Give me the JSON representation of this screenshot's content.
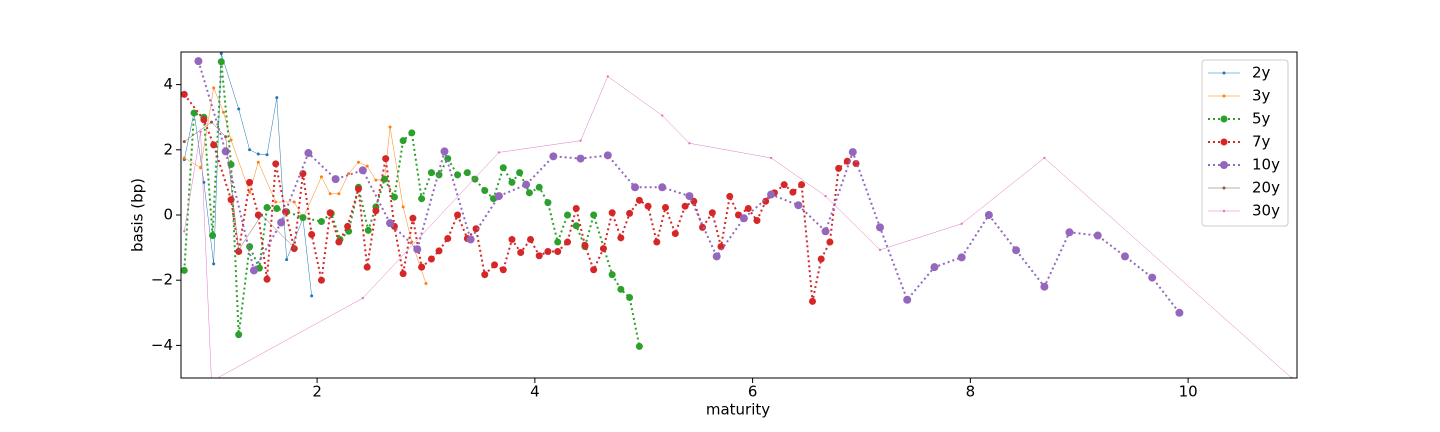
{
  "chart_data": {
    "type": "line",
    "x_label": "maturity",
    "y_label": "basis (bp)",
    "xlim": [
      0.75,
      11.0
    ],
    "ylim": [
      -5,
      5
    ],
    "xticks": [
      2,
      4,
      6,
      8,
      10
    ],
    "yticks": [
      {
        "value": -4,
        "label": "−4"
      },
      {
        "value": -2,
        "label": "−2"
      },
      0,
      2,
      4
    ],
    "legend": "upper right",
    "series": [
      {
        "name": "2y",
        "color": "#1f77b4",
        "linestyle": "solid",
        "linewidth": 0.5,
        "marker_size": 1.5,
        "x": [
          0.78,
          0.87,
          0.96,
          1.05,
          1.12,
          1.28,
          1.38,
          1.46,
          1.54,
          1.63,
          1.72,
          1.87,
          1.95
        ],
        "values": [
          1.7,
          3.15,
          1.0,
          -1.5,
          4.95,
          3.25,
          2.0,
          1.87,
          1.85,
          3.6,
          -1.37,
          -0.1,
          -2.48
        ]
      },
      {
        "name": "3y",
        "color": "#ff7f0e",
        "linestyle": "solid",
        "linewidth": 0.5,
        "marker_size": 1.5,
        "x": [
          0.78,
          0.93,
          1.05,
          1.14,
          1.21,
          1.38,
          1.46,
          1.62,
          1.79,
          1.87,
          2.04,
          2.12,
          2.2,
          2.29,
          2.38,
          2.46,
          2.54,
          2.62,
          2.67,
          2.79,
          2.87,
          3.0
        ],
        "values": [
          1.75,
          1.45,
          3.9,
          3.15,
          2.3,
          0.7,
          1.62,
          0.4,
          0.4,
          -0.1,
          1.17,
          0.65,
          0.65,
          1.27,
          1.62,
          1.5,
          1.07,
          1.1,
          2.7,
          0.25,
          -0.83,
          -2.1
        ]
      },
      {
        "name": "5y",
        "color": "#2ca02c",
        "linestyle": "dotted",
        "linewidth": 2,
        "marker_size": 3.5,
        "x": [
          0.78,
          0.87,
          0.96,
          1.04,
          1.12,
          1.21,
          1.28,
          1.38,
          1.47,
          1.54,
          1.63,
          1.72,
          1.87,
          2.04,
          2.13,
          2.21,
          2.29,
          2.38,
          2.47,
          2.54,
          2.62,
          2.71,
          2.79,
          2.87,
          2.96,
          3.05,
          3.12,
          3.2,
          3.29,
          3.38,
          3.45,
          3.54,
          3.62,
          3.71,
          3.79,
          3.86,
          3.95,
          4.04,
          4.12,
          4.21,
          4.3,
          4.38,
          4.46,
          4.54,
          4.71,
          4.79,
          4.87,
          4.96
        ],
        "values": [
          -1.7,
          3.13,
          3.0,
          -0.63,
          4.7,
          1.55,
          -3.67,
          -0.97,
          -1.63,
          0.23,
          0.2,
          0.1,
          -0.08,
          -0.2,
          0.05,
          -0.75,
          -0.5,
          0.85,
          -0.47,
          0.25,
          1.1,
          0.55,
          2.28,
          2.52,
          0.5,
          1.3,
          1.23,
          1.73,
          1.23,
          1.3,
          1.1,
          0.75,
          0.5,
          1.45,
          1.0,
          1.3,
          0.68,
          0.85,
          0.38,
          -0.83,
          0,
          -0.33,
          -0.97,
          0,
          -1.83,
          -2.28,
          -2.53,
          -4.03
        ]
      },
      {
        "name": "7y",
        "color": "#d62728",
        "linestyle": "dotted",
        "linewidth": 2,
        "marker_size": 3.5,
        "x": [
          0.78,
          0.96,
          1.05,
          1.21,
          1.28,
          1.38,
          1.46,
          1.54,
          1.62,
          1.71,
          1.79,
          1.87,
          1.95,
          2.04,
          2.12,
          2.2,
          2.28,
          2.38,
          2.46,
          2.54,
          2.63,
          2.71,
          2.79,
          2.88,
          2.96,
          3.05,
          3.12,
          3.2,
          3.29,
          3.38,
          3.46,
          3.54,
          3.63,
          3.71,
          3.79,
          3.87,
          3.96,
          4.04,
          4.12,
          4.21,
          4.3,
          4.38,
          4.46,
          4.54,
          4.63,
          4.71,
          4.79,
          4.87,
          4.96,
          5.04,
          5.12,
          5.2,
          5.29,
          5.38,
          5.46,
          5.54,
          5.63,
          5.71,
          5.79,
          5.87,
          5.96,
          6.04,
          6.12,
          6.2,
          6.29,
          6.37,
          6.45,
          6.55,
          6.63,
          6.71,
          6.79,
          6.87,
          6.95
        ],
        "values": [
          3.7,
          2.92,
          2.15,
          0.47,
          -1.12,
          1.0,
          0,
          -1.97,
          1.57,
          0.1,
          -1.03,
          1.27,
          -0.6,
          -2.0,
          0.07,
          -0.83,
          -0.35,
          0.8,
          -1.6,
          0.13,
          1.73,
          -0.35,
          -1.8,
          -0.1,
          -1.6,
          -1.35,
          -1.1,
          -0.72,
          0,
          -0.72,
          -0.42,
          -1.83,
          -1.53,
          -1.68,
          -0.75,
          -1.15,
          -0.75,
          -1.25,
          -1.12,
          -1.12,
          -0.83,
          0.2,
          -0.93,
          -1.68,
          -1.03,
          0.07,
          -0.7,
          0.05,
          0.45,
          0.27,
          -0.83,
          0.23,
          -0.57,
          0.27,
          0.42,
          -0.38,
          0.07,
          -0.97,
          0.57,
          0,
          0.2,
          -0.17,
          0.42,
          0.68,
          0.93,
          0.7,
          0.93,
          -2.65,
          -1.35,
          -0.83,
          1.43,
          1.65,
          1.58
        ]
      },
      {
        "name": "10y",
        "color": "#9467bd",
        "linestyle": "dotted",
        "linewidth": 2,
        "marker_size": 4,
        "x": [
          0.91,
          1.16,
          1.42,
          1.67,
          1.92,
          2.17,
          2.42,
          2.67,
          2.92,
          3.17,
          3.41,
          3.67,
          3.92,
          4.17,
          4.42,
          4.67,
          4.92,
          5.17,
          5.42,
          5.67,
          5.92,
          6.17,
          6.42,
          6.67,
          6.92,
          7.17,
          7.42,
          7.67,
          7.92,
          8.17,
          8.42,
          8.68,
          8.91,
          9.17,
          9.42,
          9.67,
          9.92
        ],
        "values": [
          4.72,
          1.95,
          -1.7,
          -0.23,
          1.9,
          1.1,
          1.37,
          -0.25,
          -1.05,
          1.95,
          -0.75,
          0.58,
          0.93,
          1.8,
          1.73,
          1.83,
          0.85,
          0.85,
          0.58,
          -1.27,
          -0.1,
          0.63,
          0.3,
          -0.5,
          1.93,
          -0.38,
          -2.6,
          -1.6,
          -1.3,
          0,
          -1.08,
          -2.2,
          -0.53,
          -0.63,
          -1.27,
          -1.92,
          -3.0
        ]
      },
      {
        "name": "20y",
        "color": "#8c564b",
        "linestyle": "solid",
        "linewidth": 0.5,
        "marker_size": 1.5,
        "x": [
          0.78,
          1.03,
          1.16,
          1.28,
          1.49,
          1.79
        ],
        "values": [
          2.25,
          2.85,
          2.4,
          -1.07,
          0,
          -1.0
        ]
      },
      {
        "name": "30y",
        "color": "#e377c2",
        "linestyle": "solid",
        "linewidth": 0.5,
        "marker_size": 1.2,
        "x": [
          0.78,
          0.93,
          1.03,
          2.42,
          3.67,
          4.42,
          4.67,
          5.17,
          5.42,
          6.17,
          6.67,
          7.17,
          7.92,
          8.68,
          10.95
        ],
        "values": [
          -0.5,
          2.55,
          -5.1,
          -2.55,
          1.92,
          2.28,
          4.25,
          3.05,
          2.2,
          1.75,
          0.58,
          -1.07,
          -0.27,
          1.75,
          -5.0
        ]
      }
    ]
  }
}
